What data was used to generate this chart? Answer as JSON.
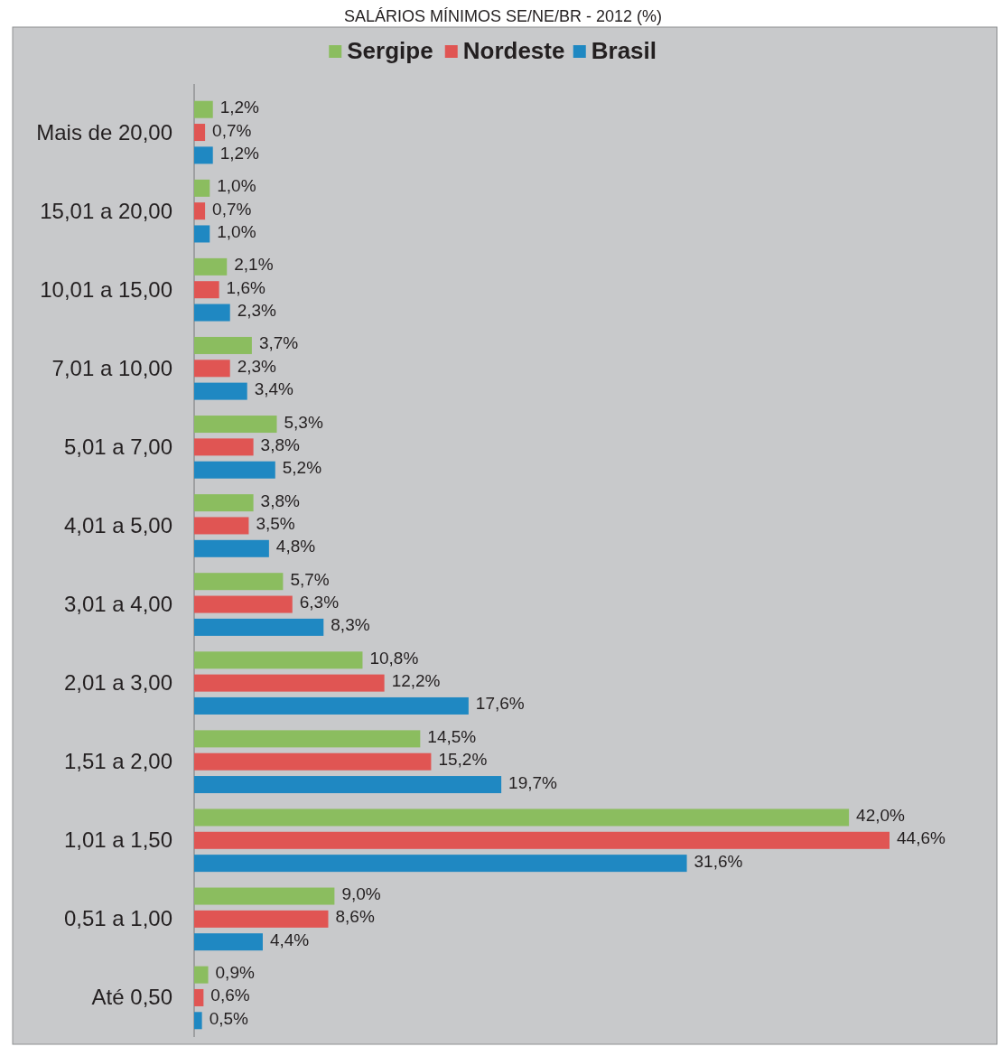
{
  "chart_data": {
    "type": "bar",
    "orientation": "horizontal",
    "title": "SALÁRIOS MÍNIMOS SE/NE/BR - 2012 (%)",
    "legend": "top",
    "categories": [
      "Mais de 20,00",
      "15,01 a 20,00",
      "10,01 a 15,00",
      "7,01 a 10,00",
      "5,01 a 7,00",
      "4,01 a 5,00",
      "3,01 a 4,00",
      "2,01 a 3,00",
      "1,51 a 2,00",
      "1,01 a 1,50",
      "0,51 a 1,00",
      "Até 0,50"
    ],
    "series": [
      {
        "name": "Sergipe",
        "color": "#8bbd5f",
        "values": [
          1.2,
          1.0,
          2.1,
          3.7,
          5.3,
          3.8,
          5.7,
          10.8,
          14.5,
          42.0,
          9.0,
          0.9
        ],
        "value_labels": [
          "1,2%",
          "1,0%",
          "2,1%",
          "3,7%",
          "5,3%",
          "3,8%",
          "5,7%",
          "10,8%",
          "14,5%",
          "42,0%",
          "9,0%",
          "0,9%"
        ]
      },
      {
        "name": "Nordeste",
        "color": "#e05553",
        "values": [
          0.7,
          0.7,
          1.6,
          2.3,
          3.8,
          3.5,
          6.3,
          12.2,
          15.2,
          44.6,
          8.6,
          0.6
        ],
        "value_labels": [
          "0,7%",
          "0,7%",
          "1,6%",
          "2,3%",
          "3,8%",
          "3,5%",
          "6,3%",
          "12,2%",
          "15,2%",
          "44,6%",
          "8,6%",
          "0,6%"
        ]
      },
      {
        "name": "Brasil",
        "color": "#1f88c2",
        "values": [
          1.2,
          1.0,
          2.3,
          3.4,
          5.2,
          4.8,
          8.3,
          17.6,
          19.7,
          31.6,
          4.4,
          0.5
        ],
        "value_labels": [
          "1,2%",
          "1,0%",
          "2,3%",
          "3,4%",
          "5,2%",
          "4,8%",
          "8,3%",
          "17,6%",
          "19,7%",
          "31,6%",
          "4,4%",
          "0,5%"
        ]
      }
    ]
  }
}
